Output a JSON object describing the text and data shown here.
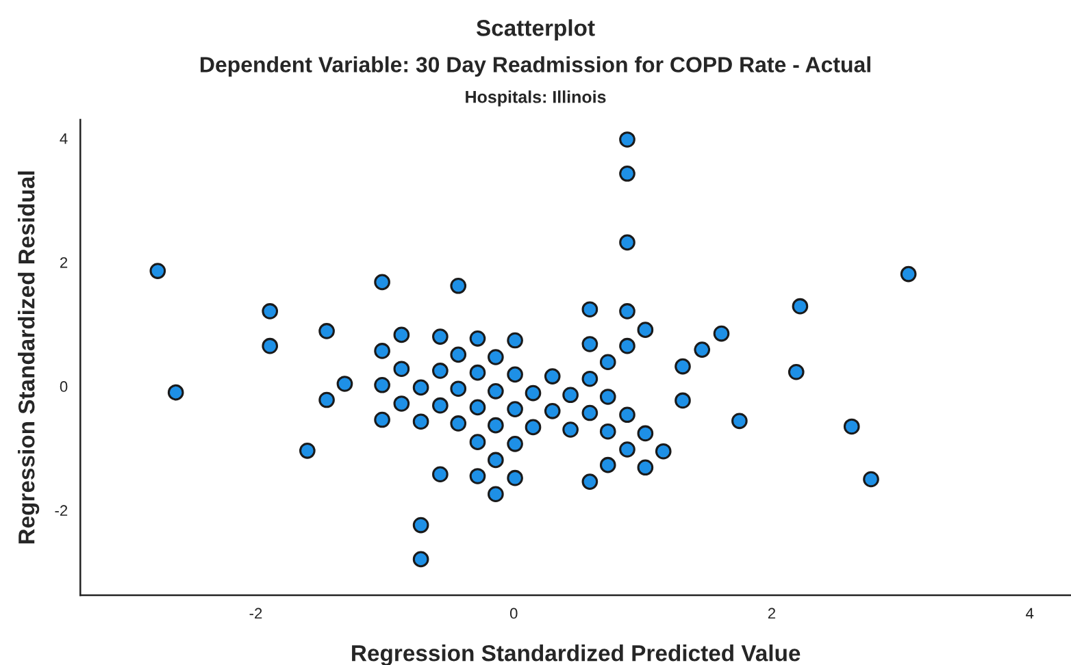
{
  "chart_data": {
    "type": "scatter",
    "title": "Scatterplot",
    "subtitle": "Dependent Variable: 30 Day Readmission for COPD Rate - Actual",
    "annotations": [
      "Hospitals: Illinois"
    ],
    "xlabel": "Regression Standardized Predicted Value",
    "ylabel": "Regression Standardized Residual",
    "xlim": [
      -3.36,
      4.32
    ],
    "ylim": [
      -3.37,
      4.3
    ],
    "xticks": [
      -2,
      0,
      2,
      4
    ],
    "yticks": [
      -2,
      0,
      2,
      4
    ],
    "grid": false,
    "marker": "circle",
    "legend": false,
    "series": [
      {
        "color": "#1e90e6",
        "x": [
          -2.76,
          -2.62,
          -1.89,
          -1.89,
          -1.45,
          -1.31,
          -1.45,
          -1.6,
          -1.02,
          -0.87,
          -1.02,
          -0.87,
          -1.02,
          -0.72,
          -0.87,
          -1.02,
          -0.72,
          -0.72,
          -0.72,
          0.88,
          0.88,
          0.88,
          -0.43,
          0.59,
          0.88,
          1.02,
          1.31,
          1.31,
          -0.57,
          -0.28,
          0.01,
          -0.43,
          -0.14,
          0.59,
          0.88,
          0.73,
          -0.57,
          -0.28,
          0.01,
          0.3,
          0.59,
          -0.43,
          -0.14,
          0.15,
          0.44,
          0.73,
          -0.57,
          -0.28,
          0.01,
          0.3,
          0.59,
          0.88,
          -0.43,
          -0.14,
          0.15,
          0.44,
          0.73,
          1.02,
          -0.28,
          0.01,
          0.88,
          1.16,
          -0.14,
          0.73,
          1.02,
          -0.57,
          -0.28,
          0.01,
          0.59,
          -0.14,
          3.06,
          2.22,
          1.61,
          1.46,
          2.19,
          1.75,
          2.62,
          2.77
        ],
        "values": [
          1.86,
          -0.1,
          1.21,
          0.65,
          0.89,
          0.04,
          -0.22,
          -1.04,
          1.68,
          0.83,
          0.57,
          0.28,
          0.02,
          -0.02,
          -0.28,
          -0.54,
          -0.57,
          -2.24,
          -2.79,
          3.98,
          3.43,
          2.32,
          1.62,
          1.24,
          1.21,
          0.91,
          0.32,
          -0.23,
          0.8,
          0.77,
          0.74,
          0.51,
          0.47,
          0.68,
          0.65,
          0.39,
          0.25,
          0.22,
          0.19,
          0.16,
          0.12,
          -0.04,
          -0.08,
          -0.11,
          -0.14,
          -0.17,
          -0.31,
          -0.34,
          -0.37,
          -0.4,
          -0.43,
          -0.46,
          -0.6,
          -0.63,
          -0.66,
          -0.7,
          -0.73,
          -0.76,
          -0.9,
          -0.93,
          -1.02,
          -1.05,
          -1.19,
          -1.27,
          -1.31,
          -1.42,
          -1.45,
          -1.48,
          -1.54,
          -1.74,
          1.81,
          1.29,
          0.85,
          0.59,
          0.23,
          -0.56,
          -0.65,
          -1.5
        ]
      }
    ]
  }
}
